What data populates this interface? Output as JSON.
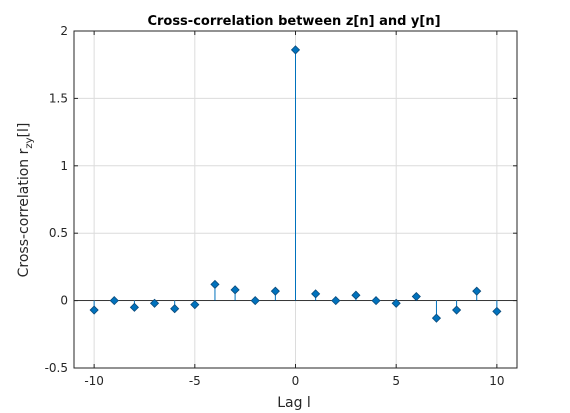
{
  "chart_data": {
    "type": "stem",
    "title": "Cross-correlation between z[n] and y[n]",
    "xlabel": "Lag l",
    "ylabel": {
      "main": "Cross-correlation r",
      "subscript": "zy",
      "suffix": "[l]"
    },
    "xlim": [
      -11,
      11
    ],
    "ylim": [
      -0.5,
      2
    ],
    "xticks": [
      -10,
      -5,
      0,
      5,
      10
    ],
    "xtick_labels": [
      "-10",
      "-5",
      "0",
      "5",
      "10"
    ],
    "yticks": [
      -0.5,
      0,
      0.5,
      1,
      1.5,
      2
    ],
    "ytick_labels": [
      "-0.5",
      "0",
      "0.5",
      "1",
      "1.5",
      "2"
    ],
    "grid": true,
    "baseline": 0,
    "marker": "diamond",
    "color": "#0072BD",
    "x": [
      -10,
      -9,
      -8,
      -7,
      -6,
      -5,
      -4,
      -3,
      -2,
      -1,
      0,
      1,
      2,
      3,
      4,
      5,
      6,
      7,
      8,
      9,
      10
    ],
    "y": [
      -0.07,
      0.0,
      -0.05,
      -0.02,
      -0.06,
      -0.03,
      0.12,
      0.08,
      0.0,
      0.07,
      1.86,
      0.05,
      0.0,
      0.04,
      0.0,
      -0.02,
      0.03,
      -0.13,
      -0.07,
      0.07,
      -0.08
    ]
  }
}
